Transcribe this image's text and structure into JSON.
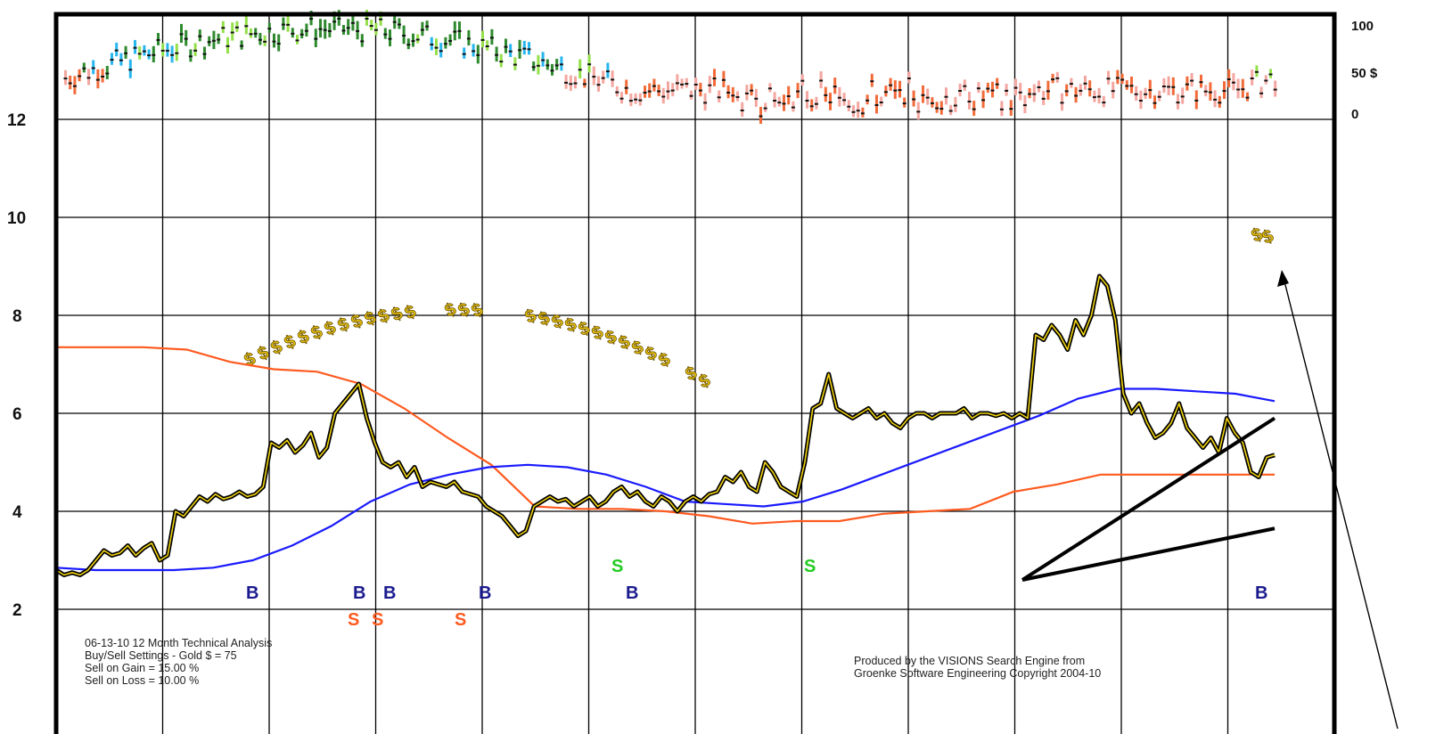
{
  "chart_data": {
    "type": "line",
    "title": "",
    "y_ticks": [
      "12",
      "10",
      "8",
      "6",
      "4",
      "2"
    ],
    "ylim": [
      0,
      14
    ],
    "right_axis_ticks": [
      "100",
      "50 $",
      "0"
    ],
    "grid": true,
    "series": [
      {
        "values": [
          2.8,
          2.7,
          2.75,
          2.7,
          2.8,
          3.0,
          3.2,
          3.1,
          3.15,
          3.3,
          3.1,
          3.25,
          3.35,
          3.0,
          3.1,
          4.0,
          3.9,
          4.1,
          4.3,
          4.2,
          4.35,
          4.25,
          4.3,
          4.4,
          4.3,
          4.35,
          4.5,
          5.4,
          5.3,
          5.45,
          5.2,
          5.35,
          5.6,
          5.1,
          5.3,
          6.0,
          6.2,
          6.4,
          6.6,
          5.9,
          5.4,
          5.0,
          4.9,
          5.0,
          4.7,
          4.9,
          4.5,
          4.6,
          4.55,
          4.5,
          4.6,
          4.4,
          4.35,
          4.3,
          4.1,
          4.0,
          3.9,
          3.7,
          3.5,
          3.6,
          4.1,
          4.2,
          4.3,
          4.2,
          4.25,
          4.1,
          4.2,
          4.3,
          4.1,
          4.2,
          4.4,
          4.5,
          4.3,
          4.4,
          4.2,
          4.1,
          4.3,
          4.2,
          4.0,
          4.2,
          4.3,
          4.2,
          4.35,
          4.4,
          4.7,
          4.6,
          4.8,
          4.5,
          4.4,
          5.0,
          4.8,
          4.5,
          4.4,
          4.3,
          5.0,
          6.1,
          6.2,
          6.8,
          6.1,
          6.0,
          5.9,
          6.0,
          6.1,
          5.9,
          6.0,
          5.8,
          5.7,
          5.9,
          6.0,
          6.0,
          5.9,
          6.0,
          6.0,
          6.0,
          6.1,
          5.9,
          6.0,
          6.0,
          5.95,
          6.0,
          5.9,
          6.0,
          5.9,
          7.6,
          7.5,
          7.8,
          7.6,
          7.3,
          7.9,
          7.6,
          8.0,
          8.8,
          8.6,
          7.9,
          6.4,
          6.0,
          6.2,
          5.8,
          5.5,
          5.6,
          5.8,
          6.2,
          5.7,
          5.5,
          5.3,
          5.5,
          5.2,
          5.9,
          5.6,
          5.4,
          4.8,
          4.7,
          5.1,
          5.15
        ],
        "color": "#000000"
      },
      {
        "values": [
          2.85,
          2.8,
          2.8,
          2.8,
          2.85,
          3.0,
          3.3,
          3.7,
          4.2,
          4.55,
          4.75,
          4.9,
          4.95,
          4.9,
          4.75,
          4.5,
          4.2,
          4.15,
          4.1,
          4.2,
          4.45,
          4.75,
          5.05,
          5.35,
          5.65,
          5.95,
          6.3,
          6.5,
          6.5,
          6.45,
          6.4,
          6.25
        ],
        "color": "#1a1aff"
      },
      {
        "values": [
          7.35,
          7.35,
          7.35,
          7.3,
          7.05,
          6.9,
          6.85,
          6.6,
          6.1,
          5.5,
          4.95,
          4.1,
          4.05,
          4.05,
          4.0,
          3.9,
          3.75,
          3.8,
          3.8,
          3.95,
          4.0,
          4.05,
          4.4,
          4.55,
          4.75,
          4.75,
          4.75,
          4.75,
          4.75
        ],
        "color": "#ff5a1f"
      }
    ],
    "signals": {
      "buy": [
        "B",
        "B",
        "B",
        "B",
        "B",
        "B"
      ],
      "sell_red": [
        "S",
        "S",
        "S"
      ],
      "sell_green": [
        "S",
        "S"
      ]
    },
    "dollar_mark": "$",
    "trend_lines": [
      {
        "from": [
          2.6,
          2.6
        ],
        "to": [
          3.65,
          5.9
        ]
      }
    ]
  },
  "notes": {
    "left_line1": "06-13-10 12 Month Technical Analysis",
    "left_line2": "Buy/Sell Settings - Gold $ = 75",
    "left_line3": "Sell on Gain = 15.00 %",
    "left_line4": "Sell on Loss = 10.00 %",
    "right_line1": "Produced by the VISIONS Search Engine from",
    "right_line2": "Groenke Software Engineering Copyright 2004-10"
  },
  "colors": {
    "price": "#000000",
    "price_glow": "#f2d410",
    "ma": "#1a1aff",
    "stop": "#ff5a1f",
    "buy": "#1b1b8f",
    "sell_red": "#ff5a1f",
    "sell_green": "#22cc22",
    "grid": "#000000"
  }
}
